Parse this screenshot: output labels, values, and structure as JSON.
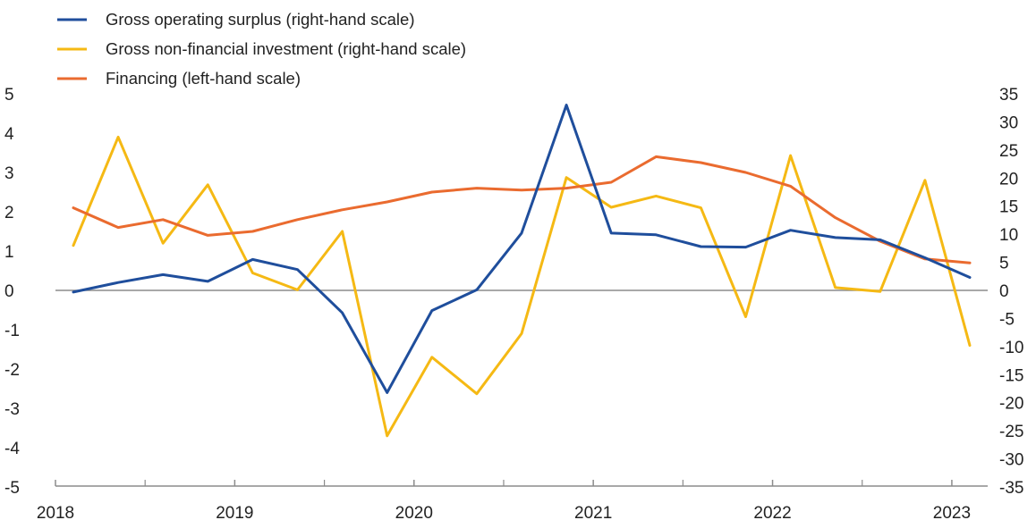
{
  "chart_data": {
    "type": "line",
    "legend_position": "top-left",
    "x": [
      2018.1,
      2018.35,
      2018.6,
      2018.85,
      2019.1,
      2019.35,
      2019.6,
      2019.85,
      2020.1,
      2020.35,
      2020.6,
      2020.85,
      2021.1,
      2021.35,
      2021.6,
      2021.85,
      2022.1,
      2022.35,
      2022.6,
      2022.85,
      2023.1
    ],
    "x_ticks": [
      "2018",
      "2019",
      "2020",
      "2021",
      "2022",
      "2023"
    ],
    "x_tick_values": [
      2018,
      2019,
      2020,
      2021,
      2022,
      2023
    ],
    "xlim": [
      2018,
      2023.2
    ],
    "ylim_left": [
      -5,
      5
    ],
    "y_ticks_left": [
      "5",
      "4",
      "3",
      "2",
      "1",
      "0",
      "-1",
      "-2",
      "-3",
      "-4",
      "-5"
    ],
    "y_tick_values_left": [
      5,
      4,
      3,
      2,
      1,
      0,
      -1,
      -2,
      -3,
      -4,
      -5
    ],
    "ylim_right": [
      -35,
      35
    ],
    "y_ticks_right": [
      "35",
      "30",
      "25",
      "20",
      "15",
      "10",
      "5",
      "0",
      "-5",
      "-10",
      "-15",
      "-20",
      "-25",
      "-30",
      "-35"
    ],
    "y_tick_values_right": [
      35,
      30,
      25,
      20,
      15,
      10,
      5,
      0,
      -5,
      -10,
      -15,
      -20,
      -25,
      -30,
      -35
    ],
    "series": [
      {
        "name": "Gross operating surplus (right-hand scale)",
        "axis": "right",
        "color": "#1f4e9c",
        "x_start": 0,
        "values": [
          -0.3,
          1.4,
          2.8,
          1.6,
          5.5,
          3.7,
          -4.0,
          -18.2,
          -3.6,
          0.1,
          10.2,
          33.0,
          10.2,
          9.9,
          7.8,
          7.7,
          10.7,
          9.4,
          9.0,
          5.8,
          2.3
        ]
      },
      {
        "name": "Gross non-financial investment (right-hand scale)",
        "axis": "right",
        "color": "#f5b914",
        "x_start": 0,
        "values": [
          8.0,
          27.3,
          8.4,
          18.8,
          3.1,
          0.1,
          10.5,
          -25.9,
          -11.9,
          -18.4,
          -7.7,
          20.1,
          14.8,
          16.8,
          14.7,
          -4.7,
          24.0,
          0.5,
          -0.2,
          19.6,
          -9.8
        ]
      },
      {
        "name": "Financing (left-hand scale)",
        "axis": "left",
        "color": "#ea6b2f",
        "x_start": 0,
        "values": [
          2.1,
          1.6,
          1.8,
          1.4,
          1.5,
          1.8,
          2.05,
          2.25,
          2.5,
          2.6,
          2.55,
          2.6,
          2.75,
          3.4,
          3.25,
          3.0,
          2.65,
          1.85,
          1.25,
          0.8,
          0.7
        ]
      }
    ]
  }
}
